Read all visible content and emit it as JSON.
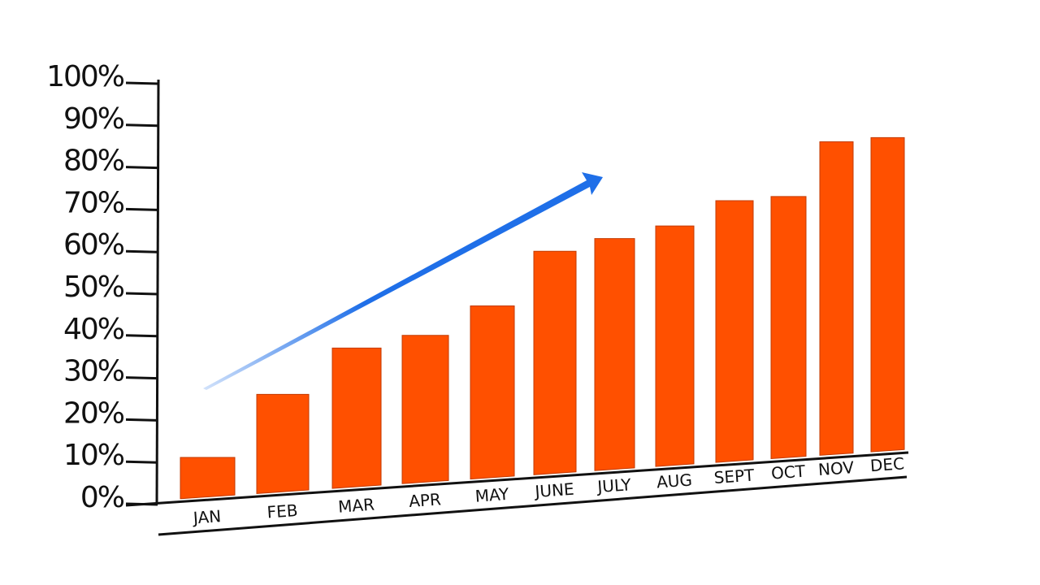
{
  "chart_data": {
    "type": "bar",
    "title": "",
    "xlabel": "",
    "ylabel": "",
    "categories": [
      "JAN",
      "FEB",
      "MAR",
      "APR",
      "MAY",
      "JUNE",
      "JULY",
      "AUG",
      "SEPT",
      "OCT",
      "NOV",
      "DEC"
    ],
    "values": [
      11,
      26,
      37,
      40,
      47,
      60,
      63,
      66,
      72,
      73,
      86,
      87
    ],
    "ylim": [
      0,
      100
    ],
    "yticks": [
      "0%",
      "10%",
      "20%",
      "30%",
      "40%",
      "50%",
      "60%",
      "70%",
      "80%",
      "90%",
      "100%"
    ],
    "grid": false,
    "legend": "none",
    "bar_color": "#ff5000",
    "trend_arrow_color": "#1f6fe8"
  }
}
